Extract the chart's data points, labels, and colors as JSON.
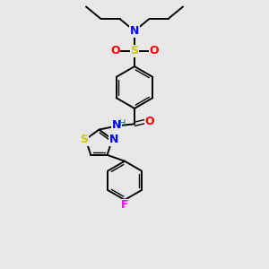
{
  "bg_color": "#e8e8e8",
  "bond_color": "#000000",
  "atom_colors": {
    "N": "#0000ff",
    "O": "#ff0000",
    "S_sulfonyl": "#cccc00",
    "S_thiazole": "#cccc00",
    "F": "#ff00ff",
    "H": "#008080"
  },
  "figsize": [
    3.0,
    3.0
  ],
  "dpi": 100,
  "xlim": [
    0,
    10
  ],
  "ylim": [
    0,
    10
  ]
}
